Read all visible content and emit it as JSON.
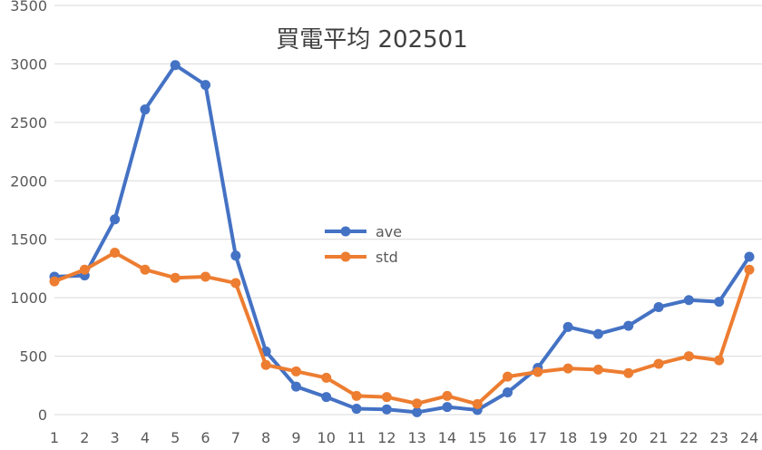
{
  "chart_data": {
    "type": "line",
    "title": "買電平均 202501",
    "xlabel": "",
    "ylabel": "",
    "ylim": [
      0,
      3500
    ],
    "yticks": [
      0,
      500,
      1000,
      1500,
      2000,
      2500,
      3000,
      3500
    ],
    "grid": true,
    "legend_position": "center",
    "x": [
      1,
      2,
      3,
      4,
      5,
      6,
      7,
      8,
      9,
      10,
      11,
      12,
      13,
      14,
      15,
      16,
      17,
      18,
      19,
      20,
      21,
      22,
      23,
      24
    ],
    "series": [
      {
        "name": "ave",
        "color": "#4472C4",
        "values": [
          1180,
          1190,
          1670,
          2610,
          2990,
          2820,
          1360,
          540,
          240,
          150,
          50,
          45,
          20,
          65,
          40,
          190,
          400,
          750,
          690,
          760,
          920,
          980,
          965,
          1350
        ]
      },
      {
        "name": "std",
        "color": "#ED7D31",
        "values": [
          1140,
          1240,
          1385,
          1240,
          1170,
          1180,
          1125,
          425,
          370,
          315,
          160,
          150,
          95,
          160,
          90,
          325,
          365,
          395,
          385,
          355,
          435,
          500,
          465,
          1240
        ]
      }
    ]
  }
}
